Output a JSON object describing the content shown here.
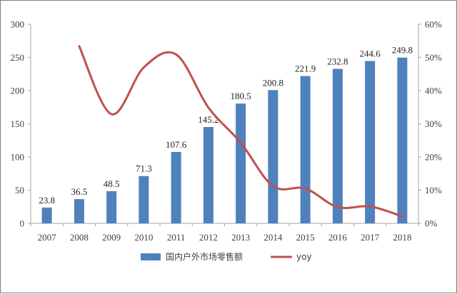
{
  "chart_data": {
    "type": "bar",
    "categories": [
      "2007",
      "2008",
      "2009",
      "2010",
      "2011",
      "2012",
      "2013",
      "2014",
      "2015",
      "2016",
      "2017",
      "2018"
    ],
    "series": [
      {
        "name": "国内户外市场零售额",
        "type": "bar",
        "axis": "left",
        "color": "#4f81bd",
        "values": [
          23.8,
          36.5,
          48.5,
          71.3,
          107.6,
          145.2,
          180.5,
          200.8,
          221.9,
          232.8,
          244.6,
          249.8
        ],
        "data_labels": [
          "23.8",
          "36.5",
          "48.5",
          "71.3",
          "107.6",
          "145.2",
          "180.5",
          "200.8",
          "221.9",
          "232.8",
          "244.6",
          "249.8"
        ]
      },
      {
        "name": "yoy",
        "type": "line",
        "axis": "right",
        "color": "#c0504d",
        "values": [
          null,
          0.534,
          0.329,
          0.47,
          0.509,
          0.349,
          0.243,
          0.112,
          0.105,
          0.049,
          0.051,
          0.021
        ]
      }
    ],
    "y_left": {
      "min": 0,
      "max": 300,
      "ticks": [
        0,
        50,
        100,
        150,
        200,
        250,
        300
      ],
      "tick_labels": [
        "0",
        "50",
        "100",
        "150",
        "200",
        "250",
        "300"
      ]
    },
    "y_right": {
      "min": 0,
      "max": 0.6,
      "ticks": [
        0,
        0.1,
        0.2,
        0.3,
        0.4,
        0.5,
        0.6
      ],
      "tick_labels": [
        "0%",
        "10%",
        "20%",
        "30%",
        "40%",
        "50%",
        "60%"
      ]
    },
    "grid": false,
    "legend_position": "bottom"
  }
}
